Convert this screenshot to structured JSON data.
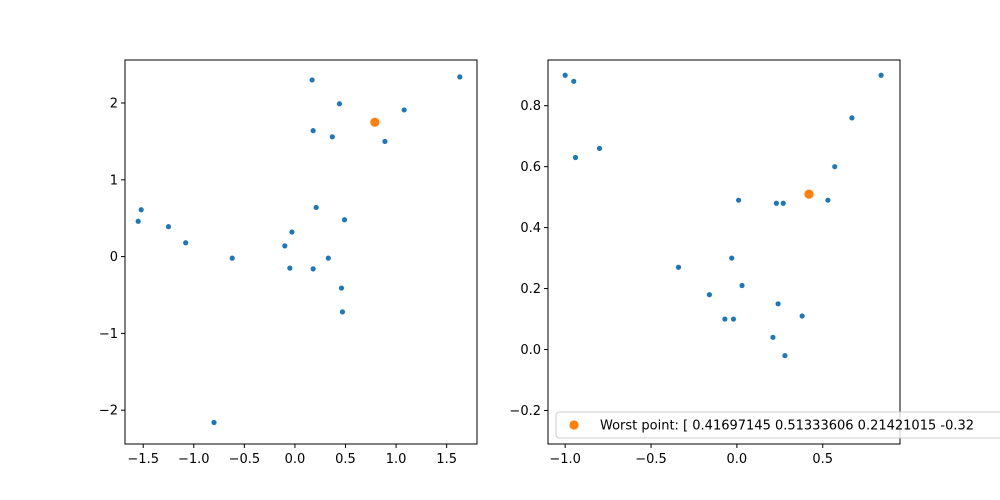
{
  "chart_data": [
    {
      "type": "scatter",
      "xlim": [
        -1.68,
        1.8
      ],
      "ylim": [
        -2.44,
        2.56
      ],
      "x_ticks": [
        -1.5,
        -1.0,
        -0.5,
        0.0,
        0.5,
        1.0,
        1.5
      ],
      "x_tick_labels": [
        "−1.5",
        "−1.0",
        "−0.5",
        "0.0",
        "0.5",
        "1.0",
        "1.5"
      ],
      "y_ticks": [
        -2,
        -1,
        0,
        1,
        2
      ],
      "y_tick_labels": [
        "−2",
        "−1",
        "0",
        "1",
        "2"
      ],
      "grid": false,
      "series": [
        {
          "color": "#1f77b4",
          "marker_size": "small",
          "points": [
            [
              -1.52,
              0.61
            ],
            [
              -1.55,
              0.46
            ],
            [
              -1.25,
              0.39
            ],
            [
              -1.08,
              0.18
            ],
            [
              -0.62,
              -0.02
            ],
            [
              -0.8,
              -2.16
            ],
            [
              -0.1,
              0.14
            ],
            [
              -0.03,
              0.32
            ],
            [
              -0.05,
              -0.15
            ],
            [
              0.18,
              -0.16
            ],
            [
              0.21,
              0.64
            ],
            [
              0.33,
              -0.02
            ],
            [
              0.49,
              0.48
            ],
            [
              0.46,
              -0.41
            ],
            [
              0.47,
              -0.72
            ],
            [
              0.18,
              1.64
            ],
            [
              0.37,
              1.56
            ],
            [
              0.44,
              1.99
            ],
            [
              0.17,
              2.3
            ],
            [
              0.89,
              1.5
            ],
            [
              1.08,
              1.91
            ],
            [
              1.63,
              2.34
            ]
          ]
        },
        {
          "color": "#ff7f0e",
          "marker_size": "large",
          "points": [
            [
              0.79,
              1.75
            ]
          ]
        }
      ]
    },
    {
      "type": "scatter",
      "xlim": [
        -1.1,
        0.95
      ],
      "ylim": [
        -0.31,
        0.95
      ],
      "x_ticks": [
        -1.0,
        -0.5,
        0.0,
        0.5
      ],
      "x_tick_labels": [
        "−1.0",
        "−0.5",
        "0.0",
        "0.5"
      ],
      "y_ticks": [
        -0.2,
        0.0,
        0.2,
        0.4,
        0.6,
        0.8
      ],
      "y_tick_labels": [
        "−0.2",
        "0.0",
        "0.2",
        "0.4",
        "0.6",
        "0.8"
      ],
      "grid": false,
      "legend_position": "lower-right",
      "series": [
        {
          "color": "#1f77b4",
          "marker_size": "small",
          "points": [
            [
              -1.0,
              0.9
            ],
            [
              -0.95,
              0.88
            ],
            [
              -0.94,
              0.63
            ],
            [
              -0.8,
              0.66
            ],
            [
              -0.34,
              0.27
            ],
            [
              -0.16,
              0.18
            ],
            [
              -0.07,
              0.1
            ],
            [
              -0.02,
              0.1
            ],
            [
              -0.03,
              0.3
            ],
            [
              0.01,
              0.49
            ],
            [
              0.03,
              0.21
            ],
            [
              0.23,
              0.48
            ],
            [
              0.27,
              0.48
            ],
            [
              0.24,
              0.15
            ],
            [
              0.21,
              0.04
            ],
            [
              0.28,
              -0.02
            ],
            [
              0.38,
              0.11
            ],
            [
              0.53,
              0.49
            ],
            [
              0.57,
              0.6
            ],
            [
              0.67,
              0.76
            ],
            [
              0.84,
              0.9
            ]
          ]
        },
        {
          "name": "Worst point: [ 0.41697145  0.51333606  0.21421015 -0.32",
          "color": "#ff7f0e",
          "marker_size": "large",
          "points": [
            [
              0.42,
              0.51
            ]
          ]
        }
      ]
    }
  ]
}
